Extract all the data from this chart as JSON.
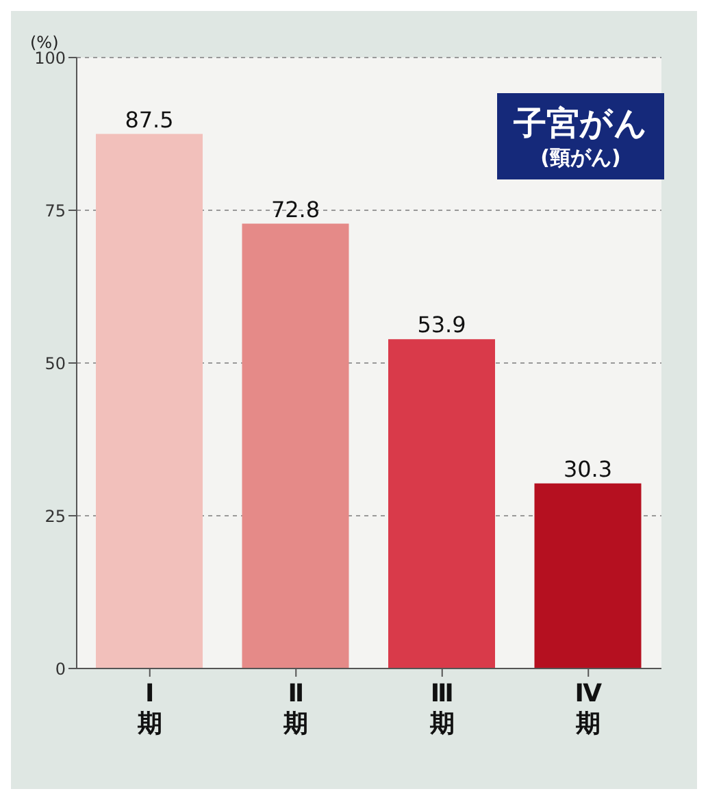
{
  "chart_data": {
    "type": "bar",
    "ylabel": "(%)",
    "categories": [
      "Ⅰ期",
      "Ⅱ期",
      "Ⅲ期",
      "Ⅳ期"
    ],
    "values": [
      87.5,
      72.8,
      53.9,
      30.3
    ],
    "colors": [
      "#f2c0bb",
      "#e58a88",
      "#d93a4a",
      "#b51020"
    ],
    "ylim": [
      0,
      100
    ],
    "yticks": [
      0,
      25,
      50,
      75,
      100
    ],
    "grid": "y",
    "data_labels": true,
    "annotations": [
      "子宮がん",
      "(頸がん)"
    ]
  }
}
